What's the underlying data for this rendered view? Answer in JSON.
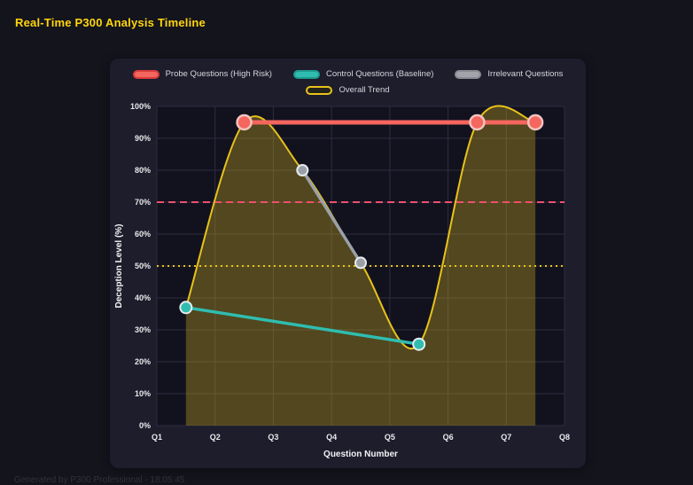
{
  "page": {
    "footer": "Generated by P300 Professional - 18:05:45"
  },
  "chart_data": {
    "type": "line",
    "title": "Real-Time P300 Analysis Timeline",
    "xlabel": "Question Number",
    "ylabel": "Deception Level (%)",
    "x_categories": [
      "Q1",
      "Q2",
      "Q3",
      "Q4",
      "Q5",
      "Q6",
      "Q7",
      "Q8"
    ],
    "x_note": "numeric x positions use category index, Q1 = 1",
    "ylim": [
      0,
      100
    ],
    "grid": true,
    "legend_position": "top-center",
    "y_ticks": [
      {
        "value": 0,
        "label": "0%"
      },
      {
        "value": 10,
        "label": "10%"
      },
      {
        "value": 20,
        "label": "20%"
      },
      {
        "value": 30,
        "label": "30%"
      },
      {
        "value": 40,
        "label": "40%"
      },
      {
        "value": 50,
        "label": "50%"
      },
      {
        "value": 60,
        "label": "60%"
      },
      {
        "value": 70,
        "label": "70%"
      },
      {
        "value": 80,
        "label": "80%"
      },
      {
        "value": 90,
        "label": "90%"
      },
      {
        "value": 100,
        "label": "100%"
      }
    ],
    "legend_rows": [
      [
        {
          "id": "probe",
          "label": "Probe Questions (High Risk)",
          "fill": "#f4665e",
          "border": "#d93b3b"
        },
        {
          "id": "control",
          "label": "Control Questions (Baseline)",
          "fill": "#2fbdb0",
          "border": "#1d9a8f"
        },
        {
          "id": "irrelevant",
          "label": "Irrelevant Questions",
          "fill": "#a3a3ab",
          "border": "#8a8a92"
        }
      ],
      [
        {
          "id": "trend",
          "label": "Overall Trend",
          "fill": "#23231a",
          "border": "#e8c21a"
        }
      ]
    ],
    "series": [
      {
        "id": "irrelevant",
        "name": "Irrelevant Questions",
        "color": "#9aa0a6",
        "line_width": 3.5,
        "marker_r": 6,
        "marker_stroke": "#e6ebee",
        "marker_stroke_width": 2,
        "points": [
          [
            3.5,
            80
          ],
          [
            4.5,
            51
          ]
        ]
      },
      {
        "id": "control",
        "name": "Control Questions (Baseline)",
        "color": "#2fbdb0",
        "line_width": 3.5,
        "marker_r": 6.5,
        "marker_stroke": "#e6ebee",
        "marker_stroke_width": 2,
        "points": [
          [
            1.5,
            37
          ],
          [
            5.5,
            25.5
          ]
        ]
      },
      {
        "id": "probe",
        "name": "Probe Questions (High Risk)",
        "color": "#f4665e",
        "line_width": 5,
        "marker_r": 8,
        "marker_stroke": "#f3c3bf",
        "marker_stroke_width": 2.5,
        "points": [
          [
            2.5,
            95
          ],
          [
            6.5,
            95
          ],
          [
            7.5,
            95
          ]
        ]
      }
    ],
    "trend": {
      "id": "trend",
      "name": "Overall Trend",
      "color": "#e8c21a",
      "line_width": 2,
      "fill": "rgba(232,196,30,0.30)",
      "points": [
        [
          1.5,
          37
        ],
        [
          2.5,
          95
        ],
        [
          3.5,
          80
        ],
        [
          4.5,
          51
        ],
        [
          5.5,
          25.5
        ],
        [
          6.5,
          95
        ],
        [
          7.5,
          95
        ]
      ]
    },
    "thresholds": [
      {
        "value": 70,
        "color": "#ef4f6e",
        "style": "dashed",
        "dash": "8 5"
      },
      {
        "value": 50,
        "color": "#e8c21a",
        "style": "dotted",
        "dash": "2 4"
      }
    ],
    "colors": {
      "plot_bg": "#12121f",
      "grid": "#2c2c3e",
      "tick": "#e8e8ec",
      "axis_title": "#f2f2f5"
    }
  }
}
